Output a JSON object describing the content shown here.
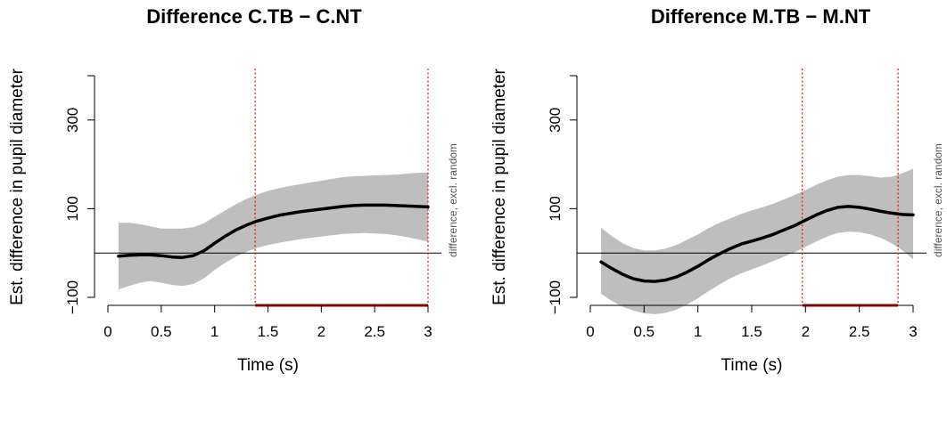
{
  "chart_data": [
    {
      "type": "line",
      "title": "Difference C.TB − C.NT",
      "xlabel": "Time (s)",
      "ylabel": "Est. difference in pupil diameter",
      "side_label": "difference, excl. random",
      "xlim": [
        0,
        3
      ],
      "ylim": [
        -100,
        400
      ],
      "x_ticks": [
        0,
        0.5,
        1,
        1.5,
        2,
        2.5,
        3
      ],
      "x_tick_labels": [
        "0",
        "0.5",
        "1",
        "1.5",
        "2",
        "2.5",
        "3"
      ],
      "y_ticks": [
        -100,
        100,
        300
      ],
      "y_tick_labels": [
        "−100",
        "100",
        "300"
      ],
      "zero_line": 0,
      "significant_interval": [
        1.38,
        3.0
      ],
      "colors": {
        "estimate": "#000000",
        "ci": "#bebebe",
        "interval": "#ff0000",
        "interval_bar": "#8b0000"
      },
      "x": [
        0.1,
        0.2,
        0.3,
        0.4,
        0.5,
        0.6,
        0.7,
        0.8,
        0.9,
        1.0,
        1.1,
        1.2,
        1.3,
        1.4,
        1.5,
        1.6,
        1.7,
        1.8,
        1.9,
        2.0,
        2.1,
        2.2,
        2.3,
        2.4,
        2.5,
        2.6,
        2.7,
        2.8,
        2.9,
        3.0
      ],
      "series": [
        {
          "values": [
            -7,
            -5,
            -4,
            -4,
            -6,
            -9,
            -10,
            -6,
            5,
            22,
            38,
            52,
            63,
            72,
            79,
            85,
            89,
            93,
            96,
            99,
            102,
            105,
            107,
            108,
            108,
            108,
            107,
            106,
            105,
            104
          ]
        }
      ],
      "ci_lower": [
        -82,
        -74,
        -67,
        -63,
        -67,
        -72,
        -74,
        -70,
        -57,
        -38,
        -22,
        -8,
        3,
        12,
        18,
        23,
        27,
        31,
        34,
        37,
        40,
        43,
        44,
        45,
        44,
        43,
        40,
        36,
        31,
        26
      ],
      "ci_upper": [
        68,
        68,
        65,
        60,
        55,
        55,
        55,
        58,
        67,
        82,
        96,
        110,
        122,
        132,
        140,
        146,
        151,
        155,
        159,
        163,
        167,
        171,
        173,
        174,
        175,
        176,
        177,
        179,
        181,
        182
      ]
    },
    {
      "type": "line",
      "title": "Difference M.TB − M.NT",
      "xlabel": "Time (s)",
      "ylabel": "Est. difference in pupil diameter",
      "side_label": "difference, excl. random",
      "xlim": [
        0,
        3
      ],
      "ylim": [
        -100,
        400
      ],
      "x_ticks": [
        0,
        0.5,
        1,
        1.5,
        2,
        2.5,
        3
      ],
      "x_tick_labels": [
        "0",
        "0.5",
        "1",
        "1.5",
        "2",
        "2.5",
        "3"
      ],
      "y_ticks": [
        -100,
        100,
        300
      ],
      "y_tick_labels": [
        "−100",
        "100",
        "300"
      ],
      "zero_line": 0,
      "significant_interval": [
        1.97,
        2.86
      ],
      "colors": {
        "estimate": "#000000",
        "ci": "#bebebe",
        "interval": "#ff0000",
        "interval_bar": "#8b0000"
      },
      "x": [
        0.1,
        0.2,
        0.3,
        0.4,
        0.5,
        0.6,
        0.7,
        0.8,
        0.9,
        1.0,
        1.1,
        1.2,
        1.3,
        1.4,
        1.5,
        1.6,
        1.7,
        1.8,
        1.9,
        2.0,
        2.1,
        2.2,
        2.3,
        2.4,
        2.5,
        2.6,
        2.7,
        2.8,
        2.9,
        3.0
      ],
      "series": [
        {
          "values": [
            -20,
            -35,
            -48,
            -58,
            -63,
            -64,
            -61,
            -54,
            -43,
            -30,
            -15,
            -2,
            10,
            20,
            27,
            34,
            42,
            52,
            62,
            74,
            86,
            96,
            103,
            105,
            103,
            99,
            94,
            90,
            87,
            86
          ]
        }
      ],
      "ci_lower": [
        -92,
        -108,
        -121,
        -130,
        -136,
        -138,
        -135,
        -128,
        -116,
        -102,
        -86,
        -71,
        -57,
        -46,
        -37,
        -28,
        -18,
        -8,
        2,
        14,
        26,
        37,
        45,
        48,
        47,
        42,
        34,
        22,
        6,
        -14
      ],
      "ci_upper": [
        57,
        38,
        22,
        11,
        6,
        6,
        10,
        18,
        30,
        42,
        56,
        68,
        78,
        88,
        96,
        103,
        111,
        121,
        131,
        142,
        154,
        164,
        172,
        176,
        176,
        173,
        170,
        172,
        180,
        190
      ]
    }
  ]
}
